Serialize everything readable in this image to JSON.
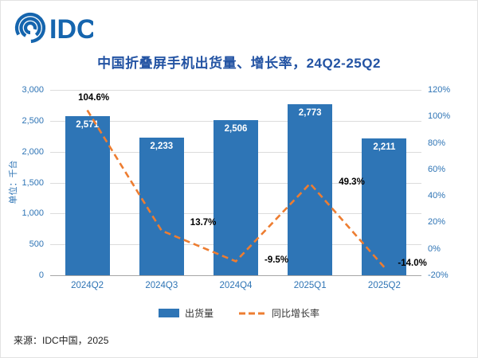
{
  "logo": {
    "text": "IDC"
  },
  "title": "中国折叠屏手机出货量、增长率，24Q2-25Q2",
  "chart_data": {
    "type": "bar+line",
    "categories": [
      "2024Q2",
      "2024Q3",
      "2024Q4",
      "2025Q1",
      "2025Q2"
    ],
    "series": [
      {
        "name": "出货量",
        "type": "bar",
        "axis": "left",
        "values": [
          2571,
          2233,
          2506,
          2773,
          2211
        ],
        "labels": [
          "2,571",
          "2,233",
          "2,506",
          "2,773",
          "2,211"
        ],
        "color": "#2E75B6"
      },
      {
        "name": "同比增长率",
        "type": "line",
        "axis": "right",
        "dashed": true,
        "values": [
          104.6,
          13.7,
          -9.5,
          49.3,
          -14.0
        ],
        "labels": [
          "104.6%",
          "13.7%",
          "-9.5%",
          "49.3%",
          "-14.0%"
        ],
        "color": "#ED7D31"
      }
    ],
    "left_axis": {
      "title": "单位：千台",
      "min": 0,
      "max": 3000,
      "step": 500,
      "ticks": [
        "3,000",
        "2,500",
        "2,000",
        "1,500",
        "1,000",
        "500",
        "0"
      ]
    },
    "right_axis": {
      "min": -20,
      "max": 120,
      "step": 20,
      "ticks": [
        "120%",
        "100%",
        "80%",
        "60%",
        "40%",
        "20%",
        "0%",
        "-20%"
      ]
    },
    "legend": {
      "position": "bottom",
      "items": [
        "出货量",
        "同比增长率"
      ]
    },
    "grid": true,
    "tick_label_color": "#2E74B5",
    "title_color": "#2353A3"
  },
  "footer": {
    "source": "来源：IDC中国，2025"
  }
}
